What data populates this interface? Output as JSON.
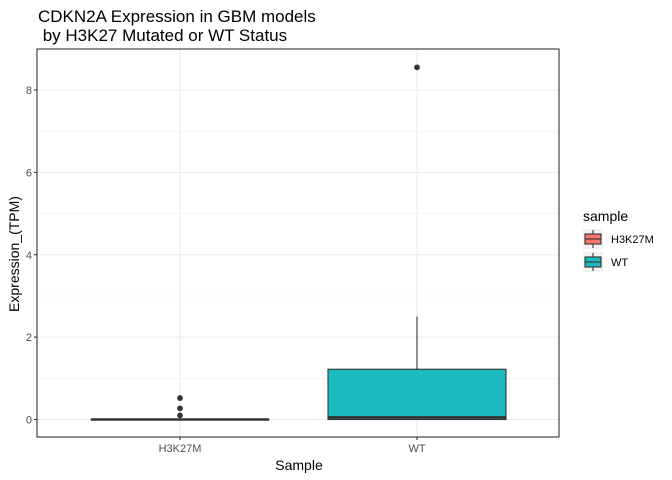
{
  "chart_data": {
    "type": "boxplot",
    "title_lines": [
      "CDKN2A Expression in GBM models",
      " by H3K27 Mutated or WT Status"
    ],
    "xlabel": "Sample",
    "ylabel": "Expression_(TPM)",
    "ylim": [
      -0.35,
      8.9
    ],
    "yticks": [
      0,
      2,
      4,
      6,
      8
    ],
    "grid": true,
    "legend": {
      "title": "sample",
      "placement": "right",
      "items": [
        {
          "label": "H3K27M",
          "color": "#F8766D"
        },
        {
          "label": "WT",
          "color": "#1ABABE"
        }
      ]
    },
    "categories": [
      "H3K27M",
      "WT"
    ],
    "boxes": [
      {
        "category": "H3K27M",
        "color": "#F8766D",
        "min": 0,
        "q1": 0,
        "median": 0,
        "q3": 0,
        "max": 0,
        "outliers": [
          0.52,
          0.27,
          0.1
        ]
      },
      {
        "category": "WT",
        "color": "#1ABABE",
        "min": 0,
        "q1": 0,
        "median": 0.05,
        "q3": 1.22,
        "max": 2.5,
        "outliers": [
          8.55
        ]
      }
    ]
  }
}
